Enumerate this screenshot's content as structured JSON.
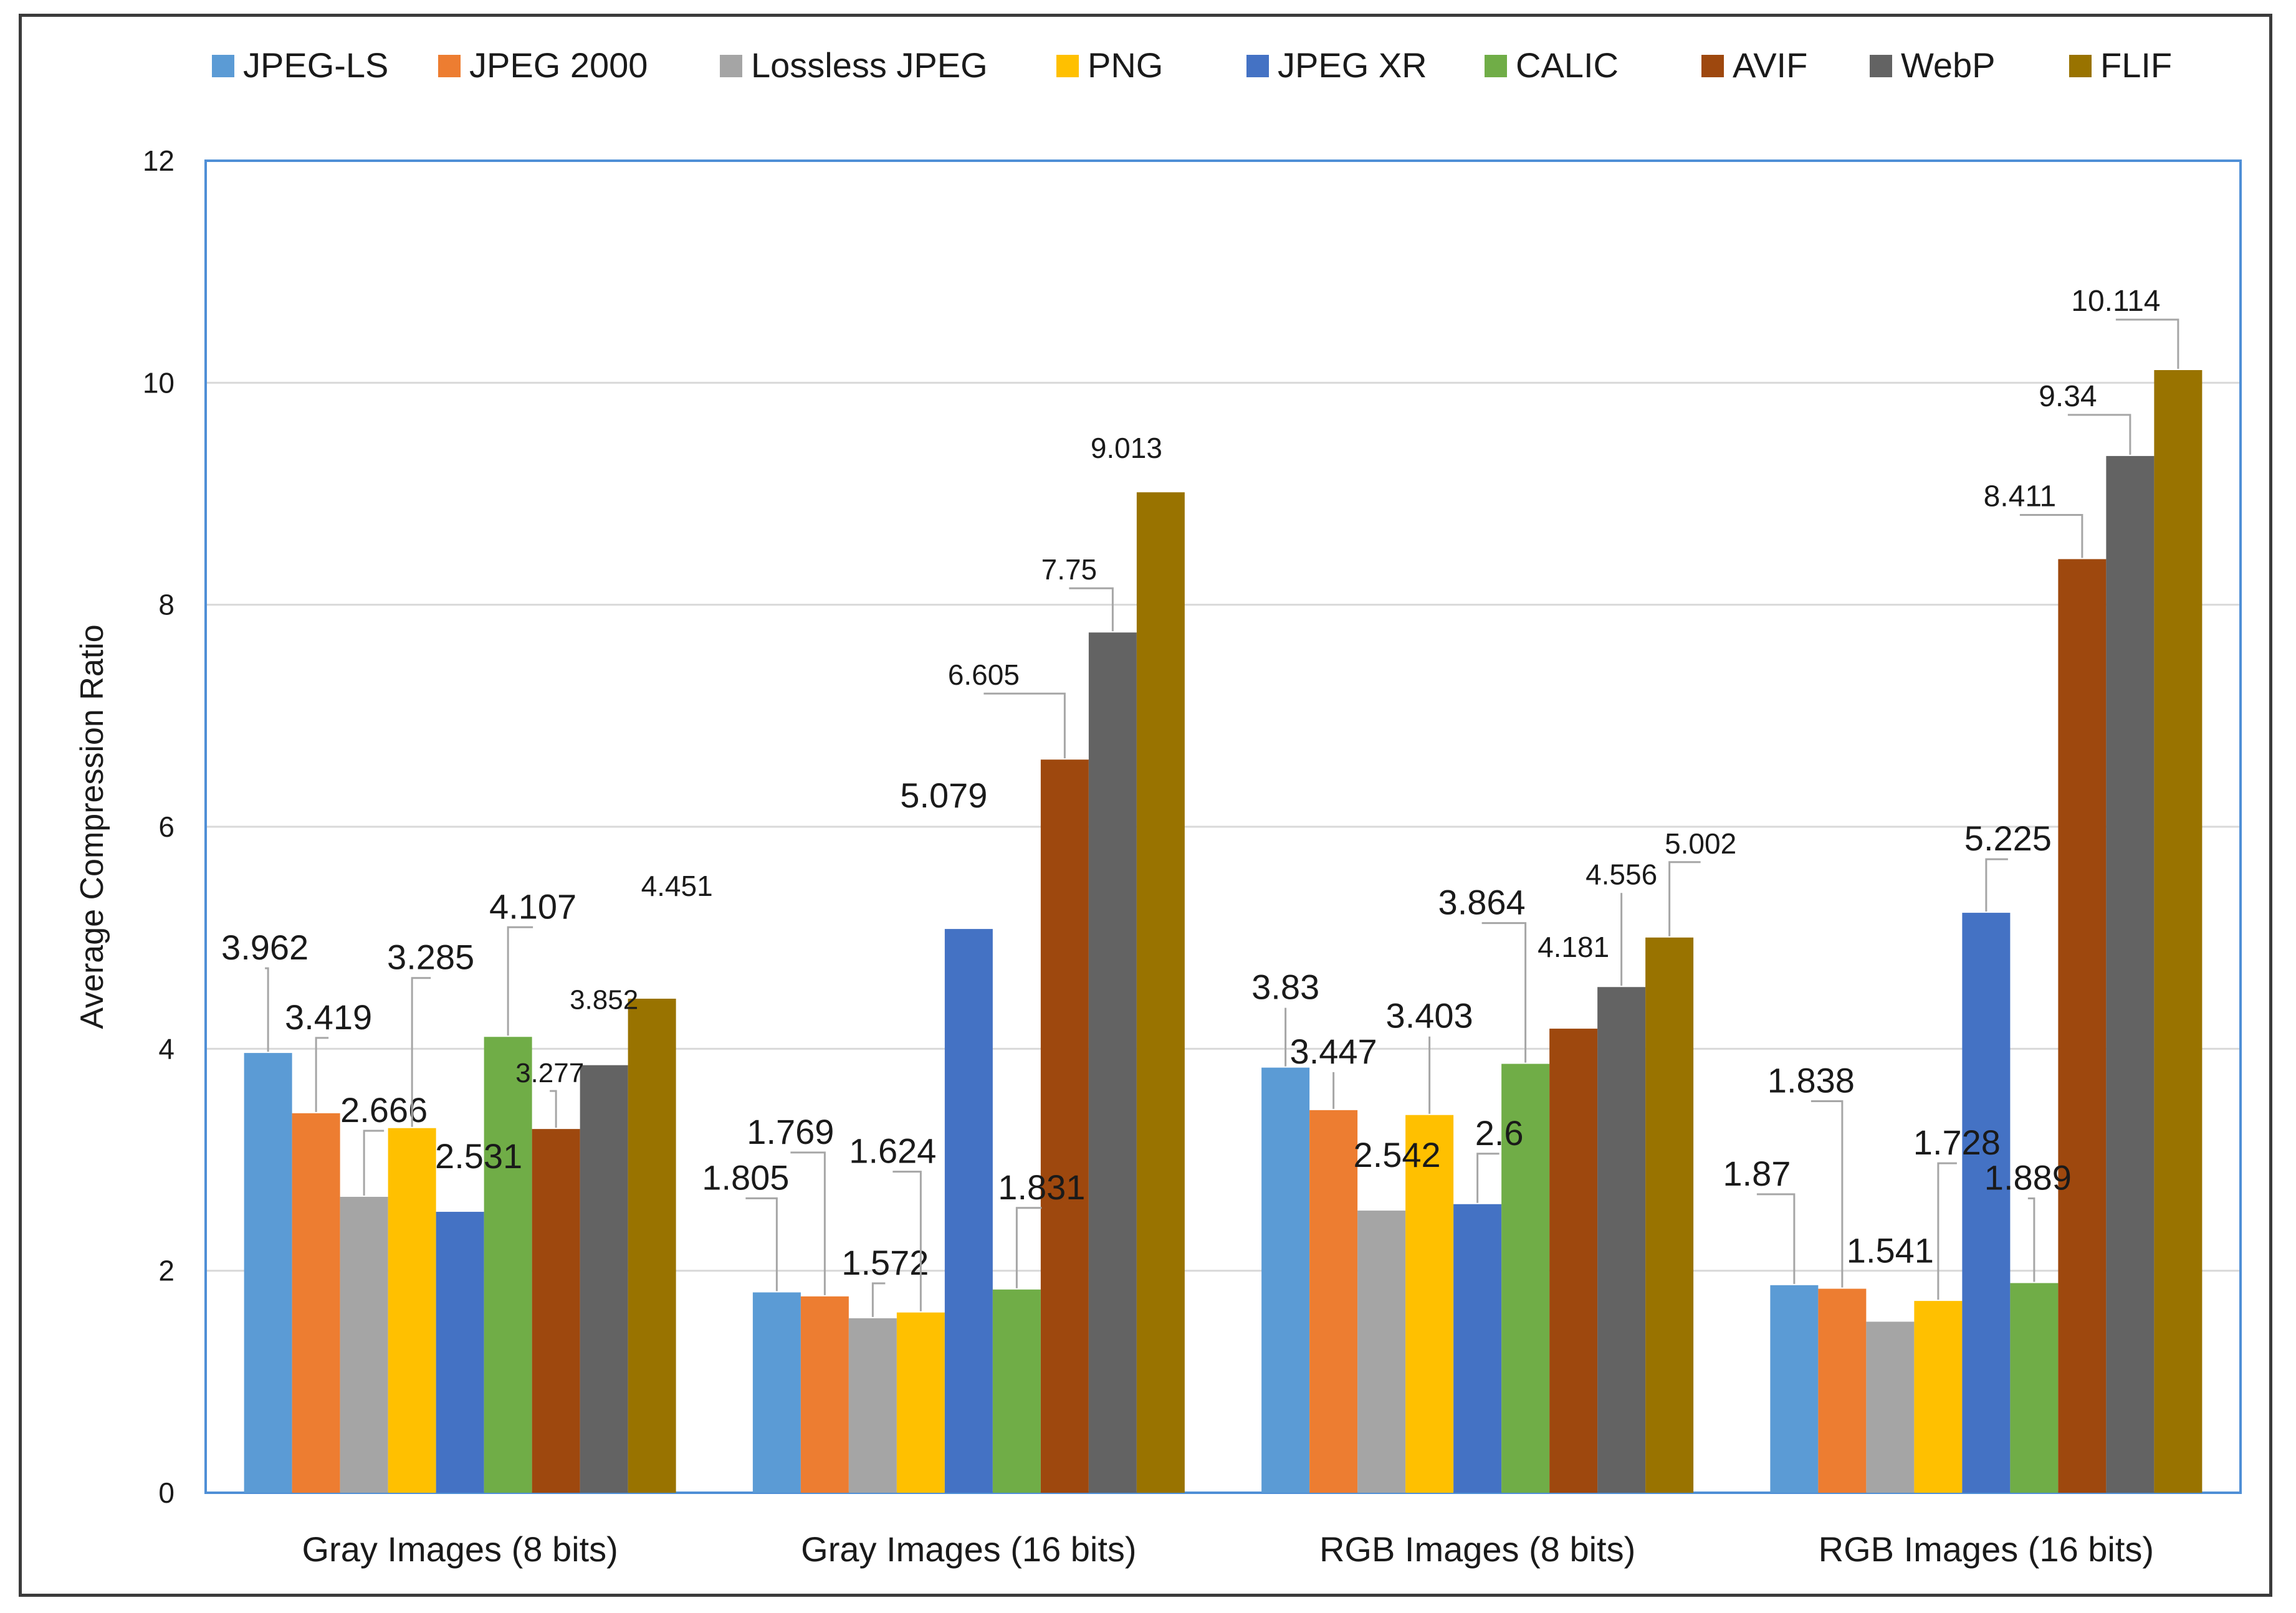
{
  "chart_data": {
    "type": "bar",
    "title": "",
    "xlabel": "",
    "ylabel": "Average Compression Ratio",
    "ylim": [
      0,
      12
    ],
    "yticks": [
      0,
      2,
      4,
      6,
      8,
      10,
      12
    ],
    "grid": true,
    "legend_position": "top",
    "categories": [
      "Gray Images (8 bits)",
      "Gray Images (16 bits)",
      "RGB Images (8 bits)",
      "RGB Images (16 bits)"
    ],
    "series": [
      {
        "name": "JPEG-LS",
        "color": "#5b9bd5",
        "values": [
          3.962,
          1.805,
          3.83,
          1.87
        ]
      },
      {
        "name": "JPEG 2000",
        "color": "#ed7d31",
        "values": [
          3.419,
          1.769,
          3.447,
          1.838
        ]
      },
      {
        "name": "Lossless JPEG",
        "color": "#a5a5a5",
        "values": [
          2.666,
          1.572,
          2.542,
          1.541
        ]
      },
      {
        "name": "PNG",
        "color": "#ffc000",
        "values": [
          3.285,
          1.624,
          3.403,
          1.728
        ]
      },
      {
        "name": "JPEG XR",
        "color": "#4472c4",
        "values": [
          2.531,
          5.079,
          2.6,
          5.225
        ]
      },
      {
        "name": "CALIC",
        "color": "#70ad47",
        "values": [
          4.107,
          1.831,
          3.864,
          1.889
        ]
      },
      {
        "name": "AVIF",
        "color": "#9e480e",
        "values": [
          3.277,
          6.605,
          4.181,
          8.411
        ]
      },
      {
        "name": "WebP",
        "color": "#636363",
        "values": [
          3.852,
          7.75,
          4.556,
          9.34
        ]
      },
      {
        "name": "FLIF",
        "color": "#997300",
        "values": [
          4.451,
          9.013,
          5.002,
          10.114
        ]
      }
    ]
  }
}
